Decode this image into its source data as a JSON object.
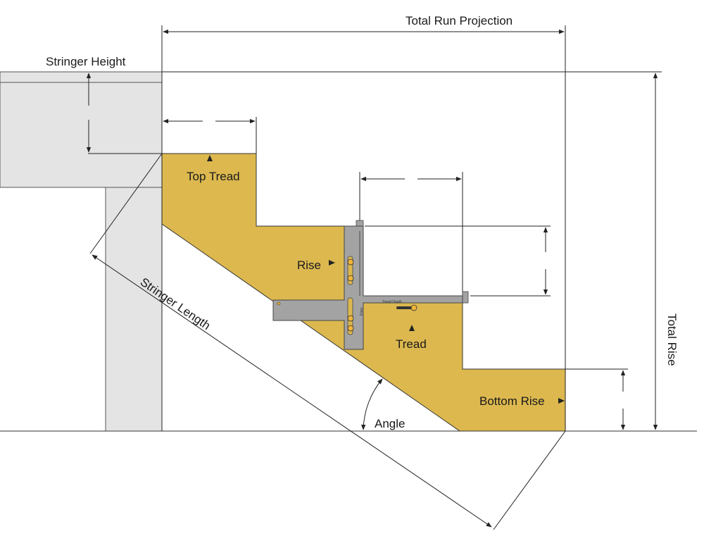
{
  "labels": {
    "total_run_projection": "Total Run Projection",
    "stringer_height": "Stringer Height",
    "top_tread": "Top Tread",
    "rise": "Rise",
    "stringer_length": "Stringer Length",
    "tread": "Tread",
    "total_rise": "Total Rise",
    "bottom_rise": "Bottom Rise",
    "angle": "Angle",
    "gauge_tread_depth": "Tread Depth",
    "gauge_riser": "Riser"
  },
  "colors": {
    "stringer": "#dcb84f",
    "deck": "#e4e4e4",
    "gauge": "#a3a3a3",
    "knob": "#f0b43a",
    "line": "#222222"
  }
}
